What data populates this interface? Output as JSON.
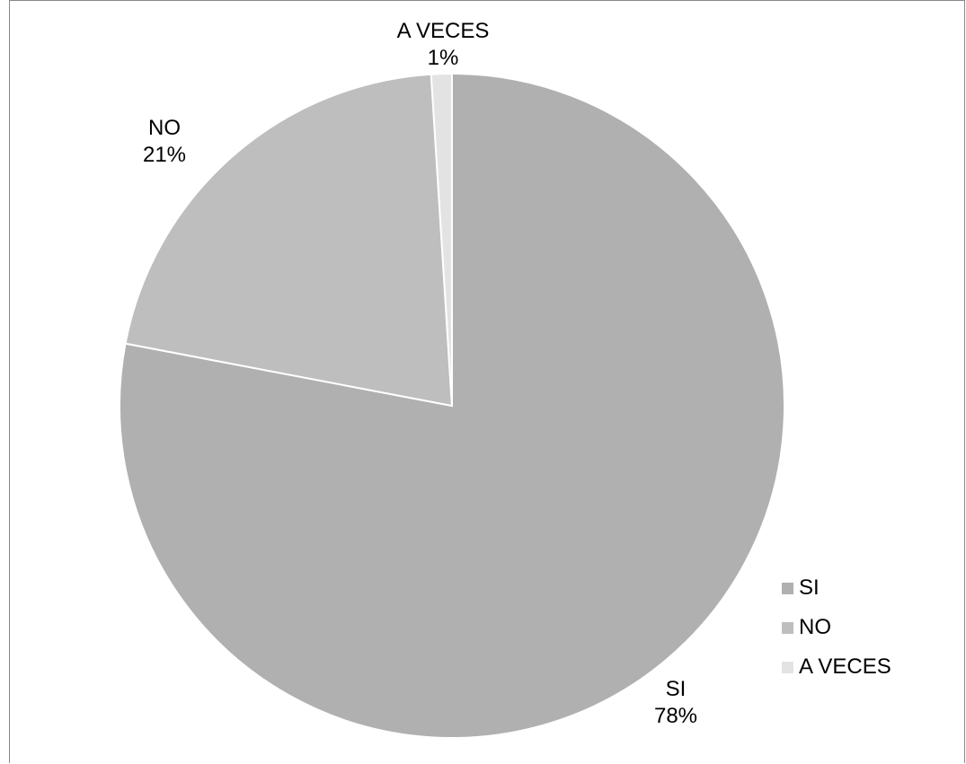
{
  "chart_data": {
    "type": "pie",
    "slices": [
      {
        "label": "SI",
        "pct_label": "78%",
        "value": 78,
        "color": "#b0b0b0"
      },
      {
        "label": "NO",
        "pct_label": "21%",
        "value": 21,
        "color": "#bebebe"
      },
      {
        "label": "A VECES",
        "pct_label": "1%",
        "value": 1,
        "color": "#e3e3e3"
      }
    ],
    "legend": {
      "position": "right",
      "items": [
        "SI",
        "NO",
        "A VECES"
      ]
    }
  }
}
